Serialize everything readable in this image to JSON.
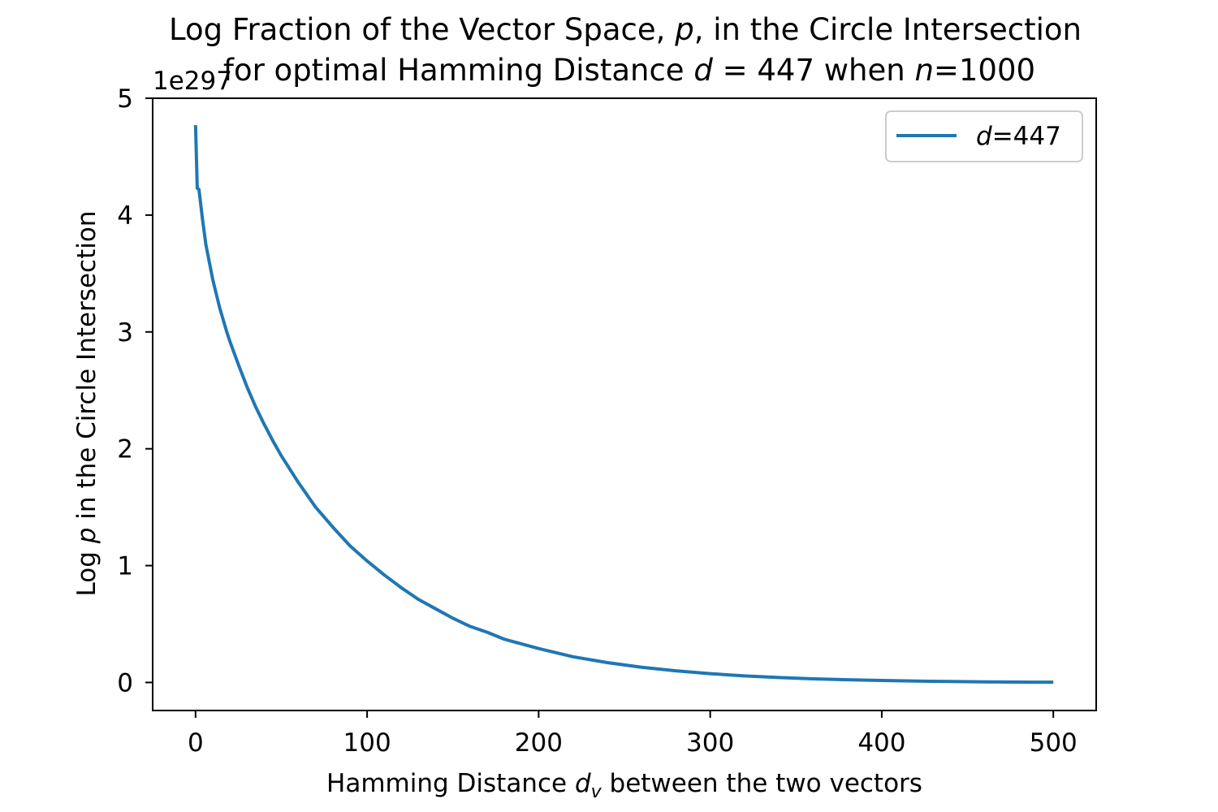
{
  "chart_data": {
    "type": "line",
    "title": {
      "line1": {
        "before": "Log Fraction of the Vector Space, ",
        "var": "p",
        "after": ", in the Circle Intersection"
      },
      "line2": {
        "before": "for optimal Hamming Distance ",
        "var": "d",
        "mid": " = 447 when ",
        "var2": "n",
        "after": "=1000"
      }
    },
    "xlabel": {
      "before": "Hamming Distance ",
      "var": "d",
      "sub": "v",
      "after": " between the two vectors"
    },
    "ylabel": {
      "before": "Log ",
      "var": "p",
      "after": " in the Circle Intersection"
    },
    "y_offset_label": "1e297",
    "xlim": [
      -25,
      525
    ],
    "ylim": [
      -0.24,
      5
    ],
    "xticks": [
      0,
      100,
      200,
      300,
      400,
      500
    ],
    "yticks": [
      0,
      1,
      2,
      3,
      4,
      5
    ],
    "grid": false,
    "legend": {
      "position": "top-right"
    },
    "series": [
      {
        "legend": {
          "var": "d",
          "after": "=447"
        },
        "color": "#1f77b4",
        "x": [
          0,
          1,
          2,
          4,
          6,
          8,
          10,
          12,
          14,
          16,
          18,
          20,
          25,
          30,
          35,
          40,
          45,
          50,
          60,
          70,
          80,
          90,
          100,
          110,
          120,
          130,
          140,
          150,
          160,
          170,
          180,
          190,
          200,
          220,
          240,
          260,
          280,
          300,
          320,
          340,
          360,
          380,
          400,
          420,
          440,
          460,
          480,
          500
        ],
        "values": [
          4.77,
          4.23,
          4.22,
          3.97,
          3.75,
          3.6,
          3.45,
          3.33,
          3.21,
          3.11,
          3.01,
          2.92,
          2.72,
          2.53,
          2.36,
          2.21,
          2.07,
          1.94,
          1.71,
          1.5,
          1.33,
          1.17,
          1.04,
          0.92,
          0.81,
          0.71,
          0.63,
          0.55,
          0.48,
          0.43,
          0.37,
          0.33,
          0.29,
          0.22,
          0.17,
          0.13,
          0.1,
          0.075,
          0.056,
          0.042,
          0.031,
          0.023,
          0.017,
          0.012,
          0.008,
          0.005,
          0.003,
          0.002
        ]
      }
    ]
  }
}
